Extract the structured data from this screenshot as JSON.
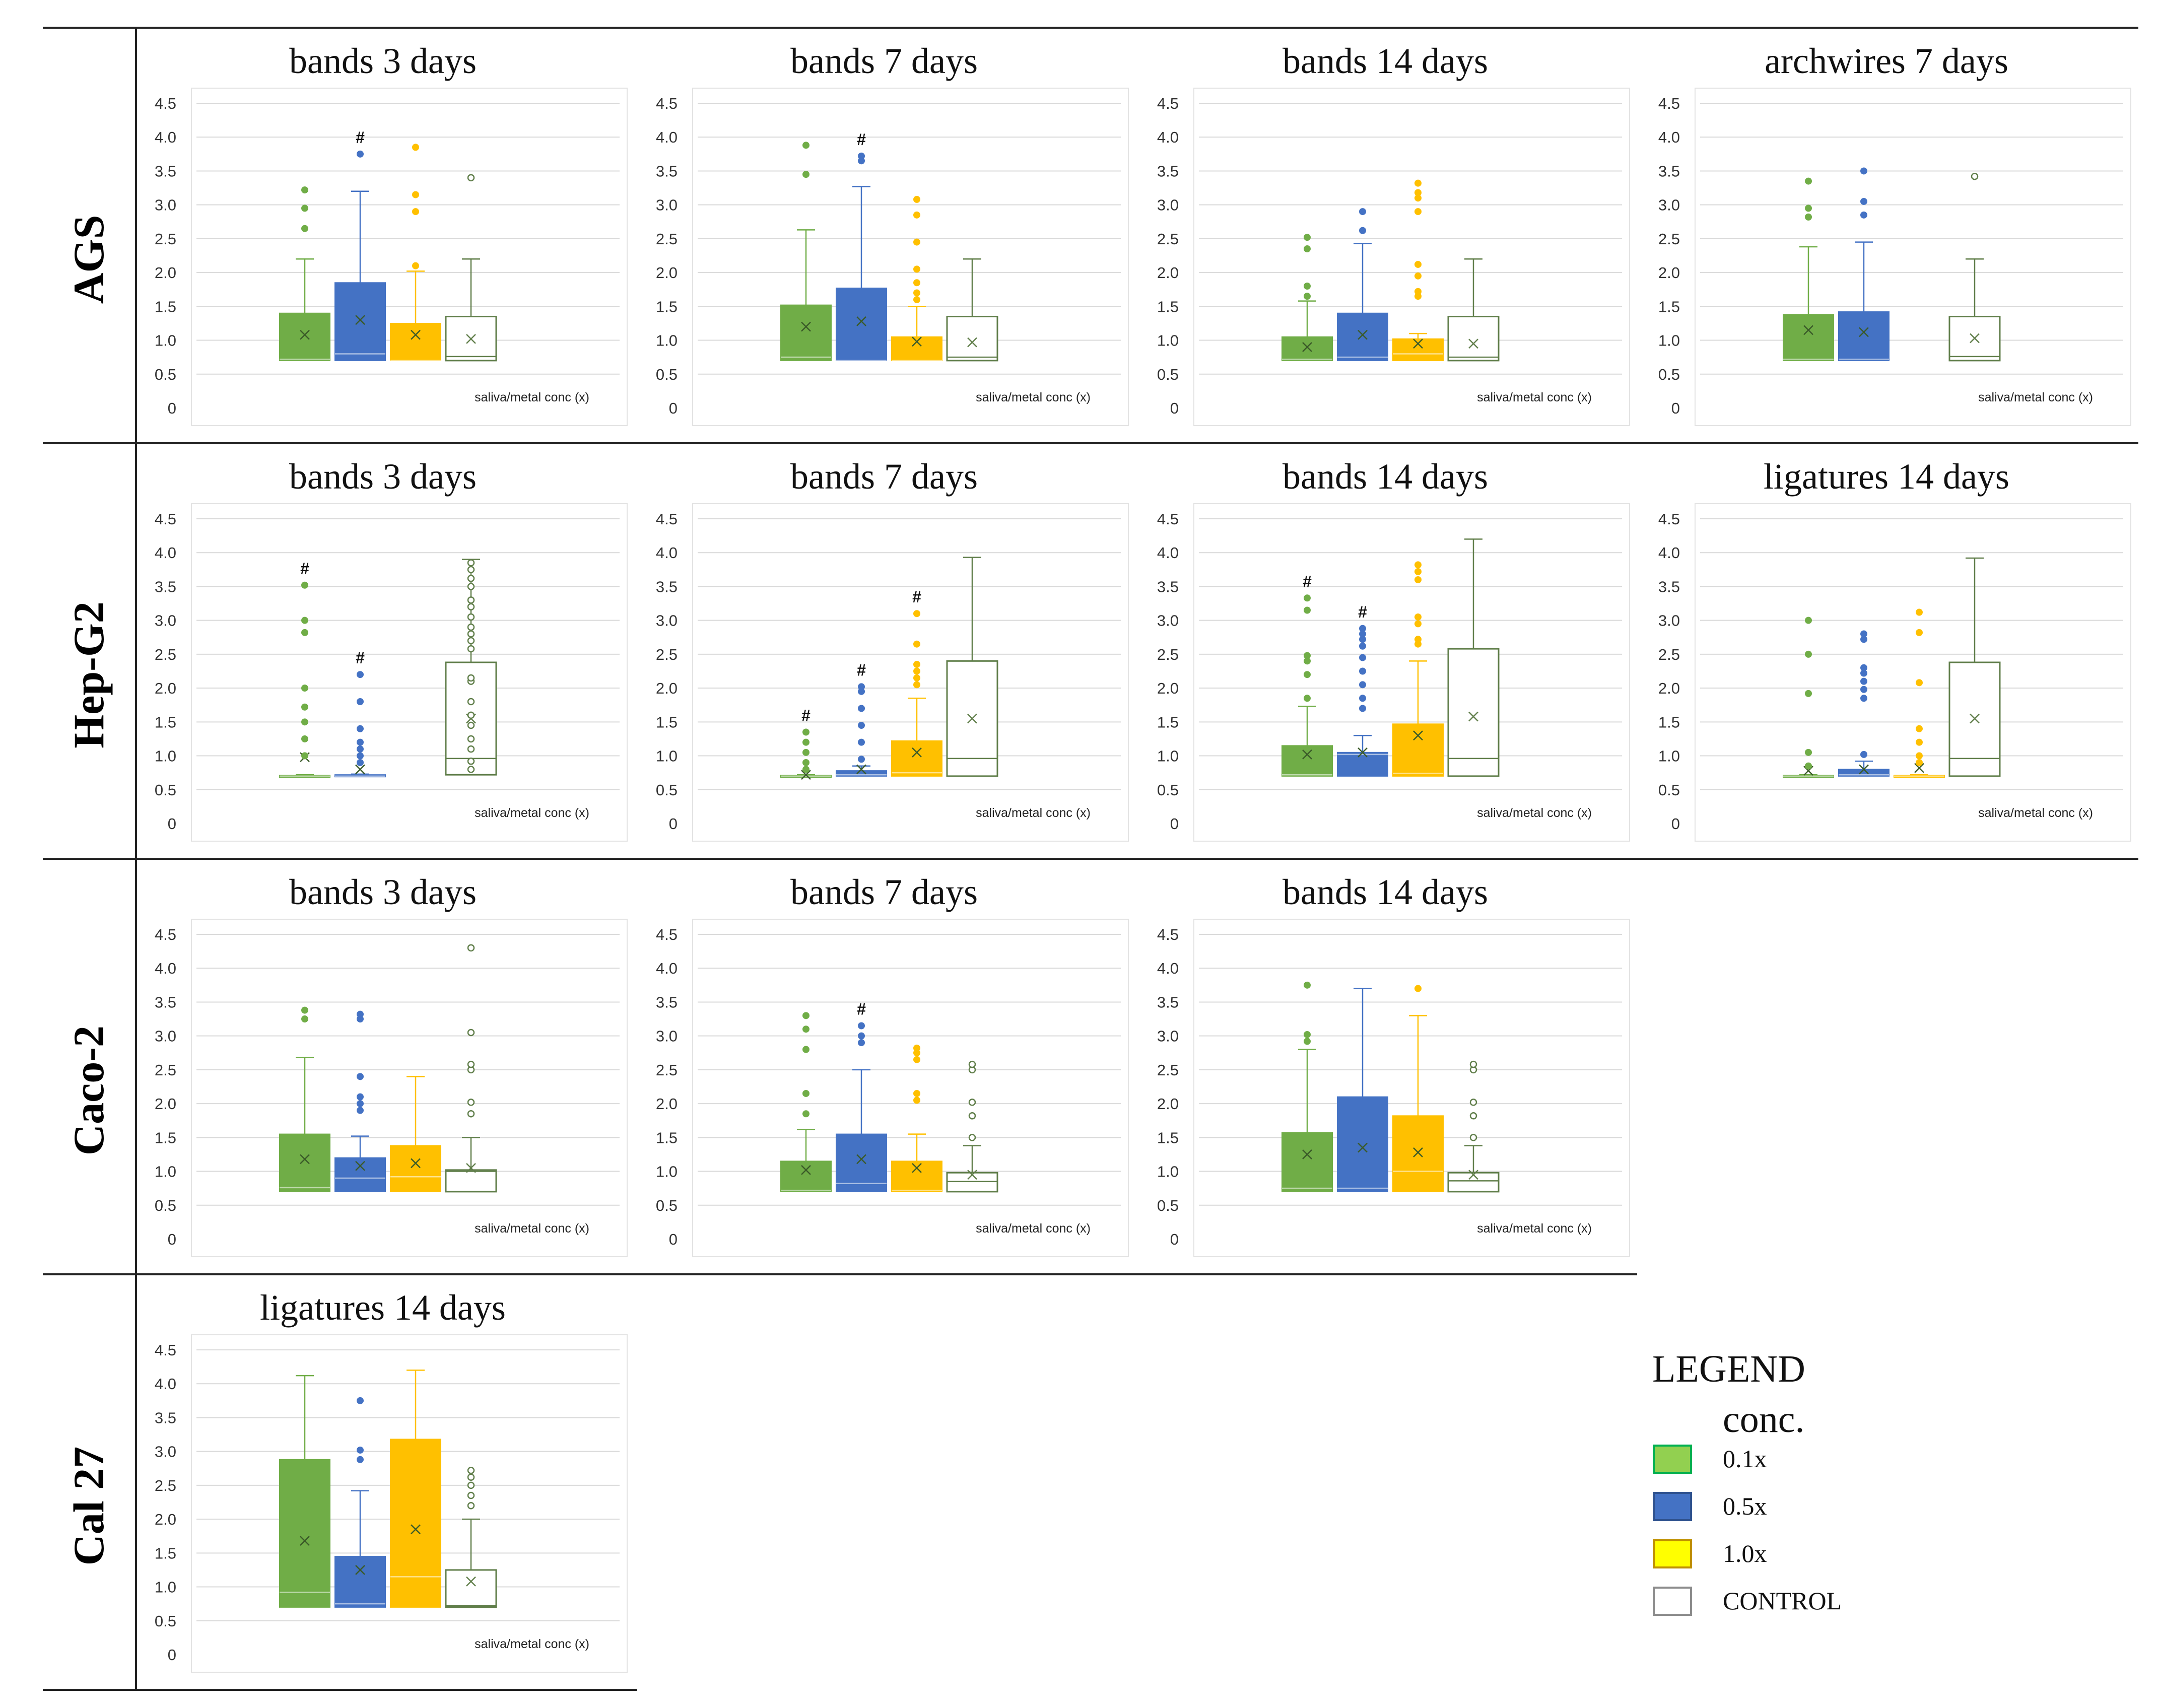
{
  "colors": {
    "c01": "#70ad47",
    "c05": "#4472c4",
    "c10": "#ffc000",
    "control": "#607e4a"
  },
  "legend": {
    "title": "LEGEND",
    "subtitle": "conc.",
    "items": [
      {
        "label": "0.1x",
        "color": "#92d050",
        "border": "#00b050"
      },
      {
        "label": "0.5x",
        "color": "#4472c4",
        "border": "#2f528f"
      },
      {
        "label": "1.0x",
        "color": "#ffff00",
        "border": "#bf9000"
      },
      {
        "label": "CONTROL",
        "color": "#ffffff",
        "border": "#8c8c8c"
      }
    ]
  },
  "rows": [
    "AGS",
    "Hep-G2",
    "Caco-2",
    "Cal 27"
  ],
  "yticks": [
    "4.5",
    "4.0",
    "3.5",
    "3.0",
    "2.5",
    "2.0",
    "1.5",
    "1.0",
    "0.5",
    "0"
  ],
  "chart_data": [
    {
      "type": "box",
      "row": 0,
      "col": 0,
      "title": "bands 3 days",
      "xlabel": "saliva/metal conc (x)",
      "ylim": [
        0,
        4.5
      ],
      "series": [
        {
          "min": 0.7,
          "q1": 0.7,
          "median": 0.72,
          "q3": 1.4,
          "max": 2.2,
          "mean": 1.08,
          "outliers": [
            2.65,
            2.95,
            3.22
          ],
          "sig": false
        },
        {
          "min": 0.7,
          "q1": 0.7,
          "median": 0.8,
          "q3": 1.85,
          "max": 3.2,
          "mean": 1.3,
          "outliers": [
            3.75
          ],
          "sig": true
        },
        {
          "min": 0.7,
          "q1": 0.7,
          "median": 0.7,
          "q3": 1.25,
          "max": 2.02,
          "mean": 1.08,
          "outliers": [
            2.1,
            2.9,
            3.15,
            3.85
          ],
          "sig": false
        },
        {
          "min": 0.7,
          "q1": 0.7,
          "median": 0.76,
          "q3": 1.35,
          "max": 2.2,
          "mean": 1.02,
          "outliers": [
            3.4
          ],
          "sig": false
        }
      ]
    },
    {
      "type": "box",
      "row": 0,
      "col": 1,
      "title": "bands 7 days",
      "xlabel": "saliva/metal conc (x)",
      "ylim": [
        0,
        4.5
      ],
      "series": [
        {
          "min": 0.7,
          "q1": 0.7,
          "median": 0.75,
          "q3": 1.52,
          "max": 2.63,
          "mean": 1.2,
          "outliers": [
            3.45,
            3.88
          ],
          "sig": false
        },
        {
          "min": 0.7,
          "q1": 0.7,
          "median": 0.7,
          "q3": 1.77,
          "max": 3.27,
          "mean": 1.28,
          "outliers": [
            3.65,
            3.72
          ],
          "sig": true
        },
        {
          "min": 0.7,
          "q1": 0.7,
          "median": 0.7,
          "q3": 1.05,
          "max": 1.5,
          "mean": 0.98,
          "outliers": [
            1.6,
            1.7,
            1.85,
            2.05,
            2.45,
            2.85,
            3.08
          ],
          "sig": false
        },
        {
          "min": 0.7,
          "q1": 0.7,
          "median": 0.75,
          "q3": 1.35,
          "max": 2.2,
          "mean": 0.97,
          "outliers": [],
          "sig": false
        }
      ]
    },
    {
      "type": "box",
      "row": 0,
      "col": 2,
      "title": "bands 14 days",
      "xlabel": "saliva/metal conc (x)",
      "ylim": [
        0,
        4.5
      ],
      "series": [
        {
          "min": 0.7,
          "q1": 0.7,
          "median": 0.72,
          "q3": 1.05,
          "max": 1.58,
          "mean": 0.9,
          "outliers": [
            1.65,
            1.8,
            2.35,
            2.52
          ],
          "sig": false
        },
        {
          "min": 0.7,
          "q1": 0.7,
          "median": 0.75,
          "q3": 1.4,
          "max": 2.43,
          "mean": 1.08,
          "outliers": [
            2.62,
            2.9
          ],
          "sig": false
        },
        {
          "min": 0.7,
          "q1": 0.7,
          "median": 0.8,
          "q3": 1.02,
          "max": 1.1,
          "mean": 0.95,
          "outliers": [
            1.65,
            1.72,
            1.95,
            2.12,
            2.9,
            3.1,
            3.18,
            3.32
          ],
          "sig": false
        },
        {
          "min": 0.7,
          "q1": 0.7,
          "median": 0.75,
          "q3": 1.35,
          "max": 2.2,
          "mean": 0.95,
          "outliers": [],
          "sig": false
        }
      ]
    },
    {
      "type": "box",
      "row": 0,
      "col": 3,
      "title": "archwires 7 days",
      "xlabel": "saliva/metal conc (x)",
      "ylim": [
        0,
        4.5
      ],
      "series": [
        {
          "min": 0.7,
          "q1": 0.7,
          "median": 0.72,
          "q3": 1.38,
          "max": 2.38,
          "mean": 1.15,
          "outliers": [
            2.82,
            2.95,
            3.35
          ],
          "sig": false
        },
        {
          "min": 0.7,
          "q1": 0.7,
          "median": 0.72,
          "q3": 1.42,
          "max": 2.45,
          "mean": 1.12,
          "outliers": [
            2.85,
            3.05,
            3.5
          ],
          "sig": false
        },
        null,
        {
          "min": 0.7,
          "q1": 0.7,
          "median": 0.76,
          "q3": 1.35,
          "max": 2.2,
          "mean": 1.03,
          "outliers": [
            3.42
          ],
          "sig": false
        }
      ]
    },
    {
      "type": "box",
      "row": 1,
      "col": 0,
      "title": "bands 3 days",
      "xlabel": "saliva/metal conc (x)",
      "ylim": [
        0,
        4.5
      ],
      "series": [
        {
          "min": 0.7,
          "q1": 0.7,
          "median": 0.7,
          "q3": 0.71,
          "max": 0.72,
          "mean": 0.98,
          "outliers": [
            1.0,
            1.25,
            1.5,
            1.72,
            2.0,
            2.82,
            3.0,
            3.52
          ],
          "sig": true
        },
        {
          "min": 0.7,
          "q1": 0.7,
          "median": 0.7,
          "q3": 0.72,
          "max": 0.73,
          "mean": 0.8,
          "outliers": [
            0.9,
            1.0,
            1.1,
            1.2,
            1.4,
            1.8,
            2.2
          ],
          "sig": true
        },
        null,
        {
          "min": 0.72,
          "q1": 0.72,
          "median": 0.96,
          "q3": 2.38,
          "max": 3.9,
          "mean": 1.55,
          "outliers": [
            0.8,
            0.92,
            1.1,
            1.25,
            1.45,
            1.6,
            1.8,
            2.1,
            2.15,
            2.58,
            2.7,
            2.8,
            2.9,
            3.05,
            3.2,
            3.3,
            3.5,
            3.62,
            3.75,
            3.85
          ],
          "sig": false
        }
      ]
    },
    {
      "type": "box",
      "row": 1,
      "col": 1,
      "title": "bands 7 days",
      "xlabel": "saliva/metal conc (x)",
      "ylim": [
        0,
        4.5
      ],
      "series": [
        {
          "min": 0.7,
          "q1": 0.7,
          "median": 0.7,
          "q3": 0.71,
          "max": 0.72,
          "mean": 0.72,
          "outliers": [
            0.8,
            0.9,
            1.05,
            1.2,
            1.35
          ],
          "sig": true
        },
        {
          "min": 0.7,
          "q1": 0.7,
          "median": 0.72,
          "q3": 0.78,
          "max": 0.85,
          "mean": 0.8,
          "outliers": [
            0.95,
            1.2,
            1.45,
            1.7,
            1.95,
            2.02
          ],
          "sig": true
        },
        {
          "min": 0.7,
          "q1": 0.7,
          "median": 0.75,
          "q3": 1.22,
          "max": 1.85,
          "mean": 1.05,
          "outliers": [
            2.05,
            2.15,
            2.25,
            2.35,
            2.65,
            3.1
          ],
          "sig": true
        },
        {
          "min": 0.7,
          "q1": 0.7,
          "median": 0.96,
          "q3": 2.4,
          "max": 3.93,
          "mean": 1.55,
          "outliers": [],
          "sig": false
        }
      ]
    },
    {
      "type": "box",
      "row": 1,
      "col": 2,
      "title": "bands 14 days",
      "xlabel": "saliva/metal conc (x)",
      "ylim": [
        0,
        4.5
      ],
      "series": [
        {
          "min": 0.7,
          "q1": 0.7,
          "median": 0.72,
          "q3": 1.15,
          "max": 1.73,
          "mean": 1.02,
          "outliers": [
            1.85,
            2.2,
            2.4,
            2.48,
            3.15,
            3.33
          ],
          "sig": true
        },
        {
          "min": 0.7,
          "q1": 0.7,
          "median": 1.02,
          "q3": 1.05,
          "max": 1.3,
          "mean": 1.05,
          "outliers": [
            1.7,
            1.85,
            2.05,
            2.25,
            2.45,
            2.62,
            2.72,
            2.8,
            2.88
          ],
          "sig": true
        },
        {
          "min": 0.7,
          "q1": 0.7,
          "median": 0.74,
          "q3": 1.47,
          "max": 2.4,
          "mean": 1.3,
          "outliers": [
            2.65,
            2.72,
            2.95,
            3.05,
            3.6,
            3.72,
            3.82
          ],
          "sig": false
        },
        {
          "min": 0.7,
          "q1": 0.7,
          "median": 0.96,
          "q3": 2.58,
          "max": 4.2,
          "mean": 1.58,
          "outliers": [],
          "sig": false
        }
      ]
    },
    {
      "type": "box",
      "row": 1,
      "col": 3,
      "title": "ligatures 14 days",
      "xlabel": "saliva/metal conc (x)",
      "ylim": [
        0,
        4.5
      ],
      "series": [
        {
          "min": 0.7,
          "q1": 0.7,
          "median": 0.7,
          "q3": 0.71,
          "max": 0.72,
          "mean": 0.78,
          "outliers": [
            0.85,
            1.05,
            1.92,
            2.5,
            3.0
          ],
          "sig": false
        },
        {
          "min": 0.7,
          "q1": 0.7,
          "median": 0.72,
          "q3": 0.8,
          "max": 0.92,
          "mean": 0.8,
          "outliers": [
            1.02,
            1.85,
            1.98,
            2.1,
            2.22,
            2.3,
            2.72,
            2.8
          ],
          "sig": false
        },
        {
          "min": 0.7,
          "q1": 0.7,
          "median": 0.7,
          "q3": 0.71,
          "max": 0.72,
          "mean": 0.82,
          "outliers": [
            0.9,
            1.0,
            1.2,
            1.4,
            2.08,
            2.82,
            3.12
          ],
          "sig": false
        },
        {
          "min": 0.7,
          "q1": 0.7,
          "median": 0.96,
          "q3": 2.38,
          "max": 3.92,
          "mean": 1.55,
          "outliers": [],
          "sig": false
        }
      ]
    },
    {
      "type": "box",
      "row": 2,
      "col": 0,
      "title": "bands 3 days",
      "xlabel": "saliva/metal conc (x)",
      "ylim": [
        0,
        4.5
      ],
      "series": [
        {
          "min": 0.7,
          "q1": 0.7,
          "median": 0.76,
          "q3": 1.55,
          "max": 2.68,
          "mean": 1.18,
          "outliers": [
            3.25,
            3.38
          ],
          "sig": false
        },
        {
          "min": 0.7,
          "q1": 0.7,
          "median": 0.9,
          "q3": 1.2,
          "max": 1.52,
          "mean": 1.08,
          "outliers": [
            1.9,
            2.0,
            2.1,
            2.4,
            3.25,
            3.32
          ],
          "sig": false
        },
        {
          "min": 0.7,
          "q1": 0.7,
          "median": 0.92,
          "q3": 1.38,
          "max": 2.4,
          "mean": 1.12,
          "outliers": [],
          "sig": false
        },
        {
          "min": 0.7,
          "q1": 0.7,
          "median": 1.0,
          "q3": 1.02,
          "max": 1.5,
          "mean": 1.05,
          "outliers": [
            1.85,
            2.02,
            2.5,
            2.58,
            3.05,
            4.3
          ],
          "sig": false
        }
      ]
    },
    {
      "type": "box",
      "row": 2,
      "col": 1,
      "title": "bands 7 days",
      "xlabel": "saliva/metal conc (x)",
      "ylim": [
        0,
        4.5
      ],
      "series": [
        {
          "min": 0.7,
          "q1": 0.7,
          "median": 0.72,
          "q3": 1.15,
          "max": 1.62,
          "mean": 1.02,
          "outliers": [
            1.85,
            2.15,
            2.8,
            3.1,
            3.3
          ],
          "sig": false
        },
        {
          "min": 0.7,
          "q1": 0.7,
          "median": 0.82,
          "q3": 1.55,
          "max": 2.5,
          "mean": 1.18,
          "outliers": [
            2.9,
            3.0,
            3.15
          ],
          "sig": true
        },
        {
          "min": 0.7,
          "q1": 0.7,
          "median": 0.72,
          "q3": 1.15,
          "max": 1.55,
          "mean": 1.05,
          "outliers": [
            2.05,
            2.15,
            2.65,
            2.75,
            2.82
          ],
          "sig": false
        },
        {
          "min": 0.7,
          "q1": 0.7,
          "median": 0.85,
          "q3": 0.98,
          "max": 1.38,
          "mean": 0.95,
          "outliers": [
            1.5,
            1.82,
            2.02,
            2.5,
            2.58
          ],
          "sig": false
        }
      ]
    },
    {
      "type": "box",
      "row": 2,
      "col": 2,
      "title": "bands 14 days",
      "xlabel": "saliva/metal conc (x)",
      "ylim": [
        0,
        4.5
      ],
      "series": [
        {
          "min": 0.7,
          "q1": 0.7,
          "median": 0.75,
          "q3": 1.57,
          "max": 2.8,
          "mean": 1.25,
          "outliers": [
            2.92,
            3.02,
            3.75
          ],
          "sig": false
        },
        {
          "min": 0.7,
          "q1": 0.7,
          "median": 0.75,
          "q3": 2.1,
          "max": 3.7,
          "mean": 1.35,
          "outliers": [],
          "sig": false
        },
        {
          "min": 0.7,
          "q1": 0.7,
          "median": 1.0,
          "q3": 1.82,
          "max": 3.3,
          "mean": 1.28,
          "outliers": [
            3.7
          ],
          "sig": false
        },
        {
          "min": 0.7,
          "q1": 0.7,
          "median": 0.86,
          "q3": 0.98,
          "max": 1.38,
          "mean": 0.95,
          "outliers": [
            1.5,
            1.82,
            2.02,
            2.5,
            2.58
          ],
          "sig": false
        }
      ]
    },
    {
      "type": "box",
      "row": 3,
      "col": 0,
      "title": "ligatures 14 days",
      "xlabel": "saliva/metal conc (x)",
      "ylim": [
        0,
        4.5
      ],
      "series": [
        {
          "min": 0.7,
          "q1": 0.7,
          "median": 0.92,
          "q3": 2.88,
          "max": 4.12,
          "mean": 1.68,
          "outliers": [],
          "sig": false
        },
        {
          "min": 0.7,
          "q1": 0.7,
          "median": 0.75,
          "q3": 1.45,
          "max": 2.42,
          "mean": 1.25,
          "outliers": [
            2.88,
            3.02,
            3.75
          ],
          "sig": false
        },
        {
          "min": 0.7,
          "q1": 0.7,
          "median": 1.15,
          "q3": 3.18,
          "max": 4.2,
          "mean": 1.85,
          "outliers": [],
          "sig": false
        },
        {
          "min": 0.7,
          "q1": 0.7,
          "median": 0.72,
          "q3": 1.25,
          "max": 2.0,
          "mean": 1.08,
          "outliers": [
            2.2,
            2.35,
            2.5,
            2.62,
            2.72
          ],
          "sig": false
        }
      ]
    }
  ]
}
